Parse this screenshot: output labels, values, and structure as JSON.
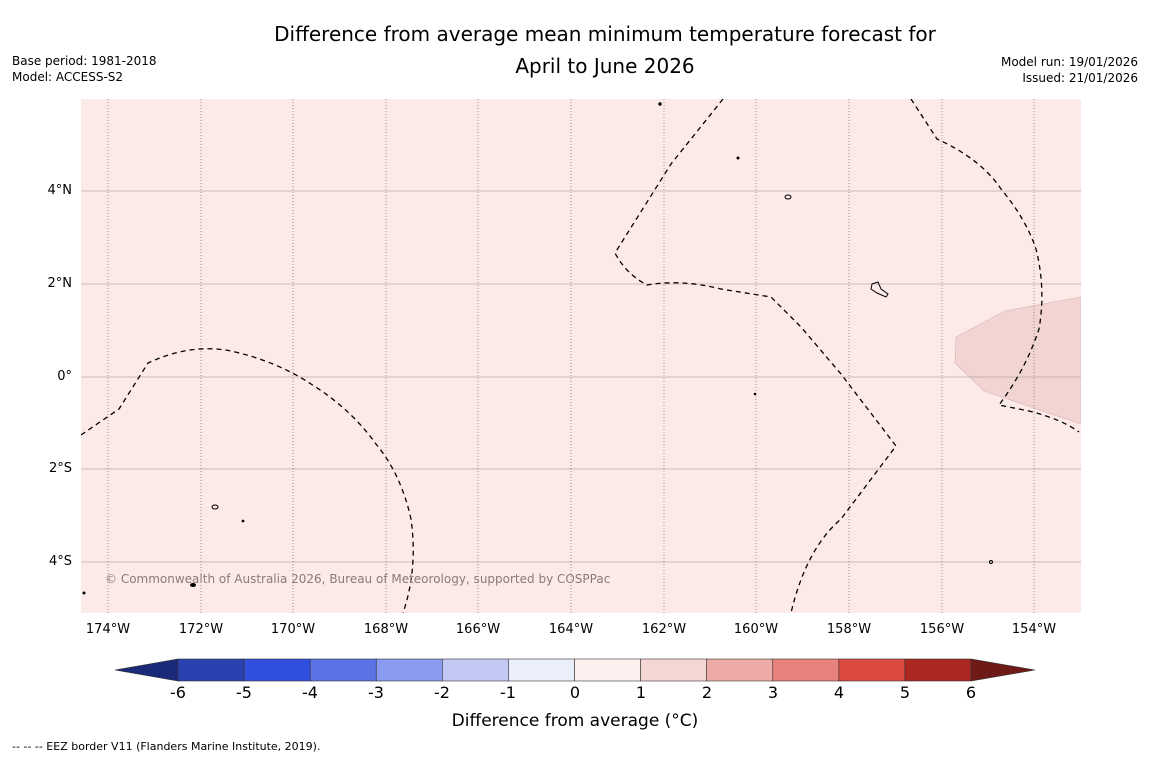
{
  "header": {
    "title_line1": "Difference from average mean minimum temperature forecast for",
    "title_line2": "April to June 2026",
    "base_period": "Base period: 1981-2018",
    "model": "Model: ACCESS-S2",
    "model_run": "Model run: 19/01/2026",
    "issued": "Issued: 21/01/2026"
  },
  "map": {
    "background_color": "#fbeae8",
    "anomaly_patch_color": "#f2d4d2",
    "copyright": "© Commonwealth of Australia 2026, Bureau of Meteorology, supported by COSPPac",
    "lat_labels": [
      "4°N",
      "2°N",
      "0°",
      "2°S",
      "4°S"
    ],
    "lon_labels": [
      "174°W",
      "172°W",
      "170°W",
      "168°W",
      "166°W",
      "164°W",
      "162°W",
      "160°W",
      "158°W",
      "156°W",
      "154°W"
    ]
  },
  "colorbar": {
    "label": "Difference from average (°C)",
    "ticks": [
      "-6",
      "-5",
      "-4",
      "-3",
      "-2",
      "-1",
      "0",
      "1",
      "2",
      "3",
      "4",
      "5",
      "6"
    ],
    "colors": [
      "#1a2a78",
      "#2a41b0",
      "#3150e0",
      "#5a74e6",
      "#8a9aee",
      "#c3c9f4",
      "#ebeefb",
      "#fdf0ee",
      "#f4d6d4",
      "#eeaaa6",
      "#e8827d",
      "#dc4a42",
      "#ab2820",
      "#6e1a16"
    ]
  },
  "footnote": "--  --  -- EEZ border V11 (Flanders Marine Institute, 2019)."
}
